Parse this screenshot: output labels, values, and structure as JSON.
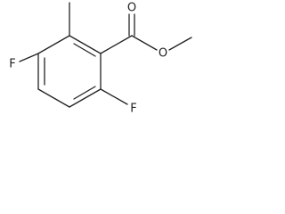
{
  "atoms": [
    {
      "label": "O"
    },
    {
      "label": "O"
    },
    {
      "label": "F"
    },
    {
      "label": "F"
    }
  ]
}
